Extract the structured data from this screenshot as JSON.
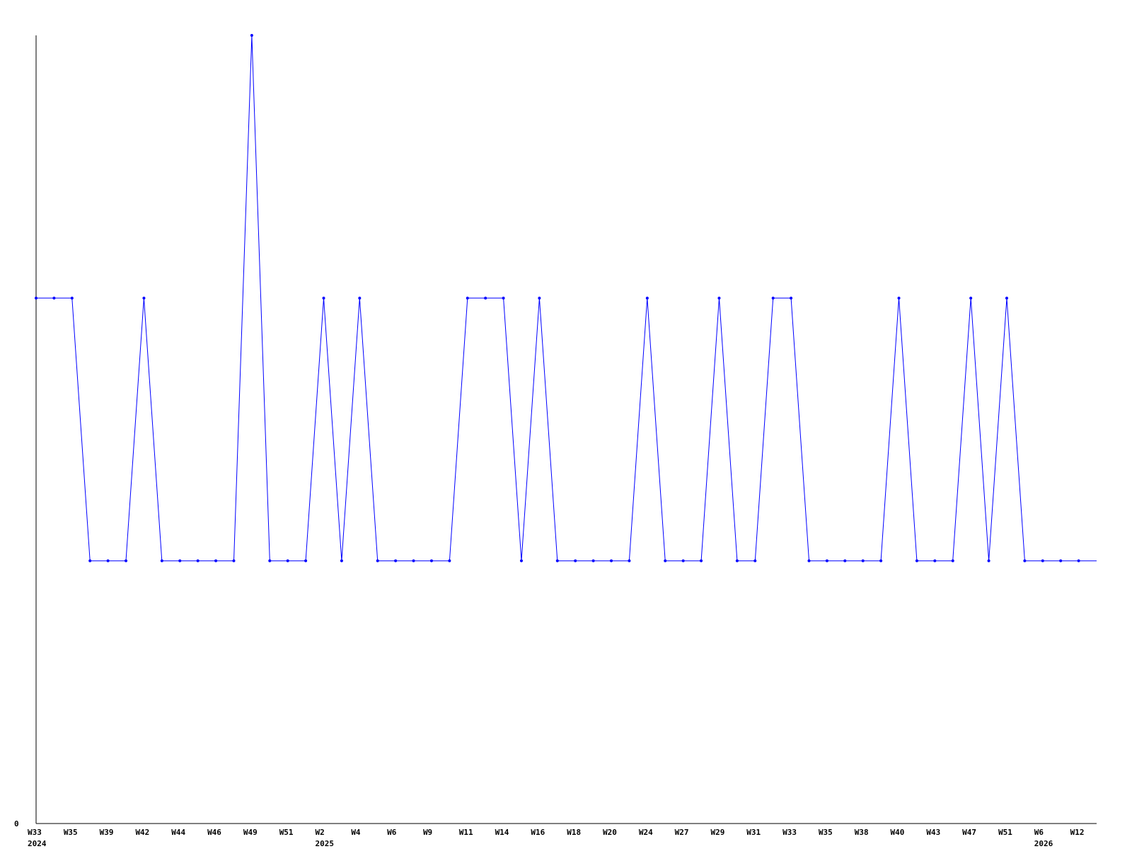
{
  "chart_data": {
    "type": "line",
    "title": "",
    "xlabel": "",
    "ylabel": "",
    "ylim": [
      0,
      3
    ],
    "y_tick_labels": [
      "0"
    ],
    "grid": false,
    "line_color": "#0000ff",
    "axis_color": "#000000",
    "x_tick_labels": [
      "W33",
      "W35",
      "W39",
      "W42",
      "W44",
      "W46",
      "W49",
      "W51",
      "W2",
      "W4",
      "W6",
      "W9",
      "W11",
      "W14",
      "W16",
      "W18",
      "W20",
      "W24",
      "W27",
      "W29",
      "W31",
      "W33",
      "W35",
      "W38",
      "W40",
      "W43",
      "W47",
      "W51",
      "W6",
      "W12"
    ],
    "year_labels": [
      {
        "tick_index": 0,
        "text": "2024"
      },
      {
        "tick_index": 8,
        "text": "2025"
      },
      {
        "tick_index": 28,
        "text": "2026"
      }
    ],
    "values": [
      2,
      2,
      2,
      1,
      1,
      1,
      2,
      1,
      1,
      1,
      1,
      1,
      3,
      1,
      1,
      1,
      2,
      1,
      2,
      1,
      1,
      1,
      1,
      1,
      2,
      2,
      2,
      1,
      2,
      1,
      1,
      1,
      1,
      1,
      2,
      1,
      1,
      1,
      2,
      1,
      1,
      2,
      2,
      1,
      1,
      1,
      1,
      1,
      2,
      1,
      1,
      1,
      2,
      1,
      2,
      1,
      1,
      1,
      1,
      1
    ]
  }
}
